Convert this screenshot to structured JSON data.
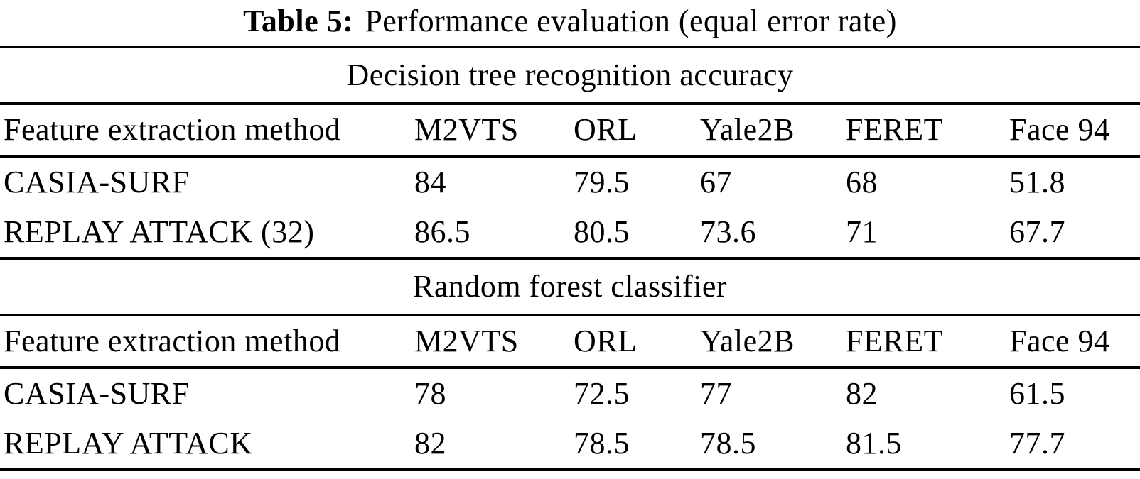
{
  "caption": {
    "label": "Table 5:",
    "text": "Performance evaluation (equal error rate)"
  },
  "table": {
    "columns": [
      "Feature extraction method",
      "M2VTS",
      "ORL",
      "Yale2B",
      "FERET",
      "Face 94"
    ],
    "sections": [
      {
        "title": "Decision tree recognition accuracy",
        "rows": [
          {
            "method": "CASIA-SURF",
            "values": [
              "84",
              "79.5",
              "67",
              "68",
              "51.8"
            ]
          },
          {
            "method": "REPLAY ATTACK (32)",
            "values": [
              "86.5",
              "80.5",
              "73.6",
              "71",
              "67.7"
            ]
          }
        ]
      },
      {
        "title": "Random forest classifier",
        "rows": [
          {
            "method": "CASIA-SURF",
            "values": [
              "78",
              "72.5",
              "77",
              "82",
              "61.5"
            ]
          },
          {
            "method": "REPLAY ATTACK",
            "values": [
              "82",
              "78.5",
              "78.5",
              "81.5",
              "77.7"
            ]
          }
        ]
      }
    ]
  },
  "colors": {
    "text": "#000000",
    "background": "#ffffff",
    "rule": "#000000"
  }
}
